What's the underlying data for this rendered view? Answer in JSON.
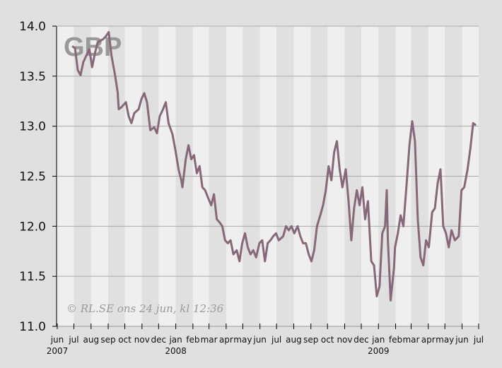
{
  "chart_data": {
    "type": "line",
    "title": "GBP",
    "watermark": "© RL.SE ons 24 jun, kl 12:36",
    "xlabel": "",
    "ylabel": "",
    "xlim": [
      "2007-06-01",
      "2009-07-01"
    ],
    "ylim": [
      11.0,
      14.0
    ],
    "yticks": [
      "14.0",
      "13.5",
      "13.0",
      "12.5",
      "12.0",
      "11.5",
      "11.0"
    ],
    "xtick_labels": [
      "jun",
      "jul",
      "aug",
      "sep",
      "oct",
      "nov",
      "dec",
      "jan",
      "feb",
      "mar",
      "apr",
      "may",
      "jun",
      "jul",
      "aug",
      "sep",
      "oct",
      "nov",
      "dec",
      "jan",
      "feb",
      "mar",
      "apr",
      "may",
      "jun",
      "jul"
    ],
    "year_labels": [
      {
        "label": "2007",
        "month_index": 0
      },
      {
        "label": "2008",
        "month_index": 7
      },
      {
        "label": "2009",
        "month_index": 19
      }
    ],
    "grid": true,
    "alternating_month_bands": true,
    "colors": {
      "line": "#866878",
      "band_light": "#efefef",
      "band_dark": "#e0e0e0",
      "grid": "#aaaaaa"
    },
    "series": [
      {
        "points": [
          [
            "2007-06-28",
            13.8
          ],
          [
            "2007-07-03",
            13.78
          ],
          [
            "2007-07-08",
            13.56
          ],
          [
            "2007-07-13",
            13.51
          ],
          [
            "2007-07-18",
            13.64
          ],
          [
            "2007-07-23",
            13.7
          ],
          [
            "2007-07-29",
            13.77
          ],
          [
            "2007-08-03",
            13.59
          ],
          [
            "2007-08-08",
            13.73
          ],
          [
            "2007-08-13",
            13.84
          ],
          [
            "2007-08-23",
            13.87
          ],
          [
            "2007-08-28",
            13.9
          ],
          [
            "2007-09-02",
            13.94
          ],
          [
            "2007-09-07",
            13.7
          ],
          [
            "2007-09-13",
            13.52
          ],
          [
            "2007-09-18",
            13.34
          ],
          [
            "2007-09-20",
            13.17
          ],
          [
            "2007-09-25",
            13.19
          ],
          [
            "2007-10-03",
            13.24
          ],
          [
            "2007-10-08",
            13.1
          ],
          [
            "2007-10-13",
            13.03
          ],
          [
            "2007-10-18",
            13.13
          ],
          [
            "2007-10-26",
            13.17
          ],
          [
            "2007-10-31",
            13.27
          ],
          [
            "2007-11-05",
            13.33
          ],
          [
            "2007-11-10",
            13.24
          ],
          [
            "2007-11-16",
            12.96
          ],
          [
            "2007-11-23",
            12.99
          ],
          [
            "2007-11-28",
            12.93
          ],
          [
            "2007-12-03",
            13.1
          ],
          [
            "2007-12-09",
            13.17
          ],
          [
            "2007-12-14",
            13.24
          ],
          [
            "2007-12-19",
            13.03
          ],
          [
            "2007-12-26",
            12.92
          ],
          [
            "2008-01-01",
            12.74
          ],
          [
            "2008-01-06",
            12.57
          ],
          [
            "2008-01-11",
            12.46
          ],
          [
            "2008-01-13",
            12.39
          ],
          [
            "2008-01-19",
            12.67
          ],
          [
            "2008-01-24",
            12.81
          ],
          [
            "2008-01-29",
            12.67
          ],
          [
            "2008-02-03",
            12.71
          ],
          [
            "2008-02-08",
            12.53
          ],
          [
            "2008-02-13",
            12.6
          ],
          [
            "2008-02-18",
            12.39
          ],
          [
            "2008-02-23",
            12.36
          ],
          [
            "2008-02-28",
            12.29
          ],
          [
            "2008-03-05",
            12.21
          ],
          [
            "2008-03-10",
            12.32
          ],
          [
            "2008-03-15",
            12.07
          ],
          [
            "2008-03-20",
            12.04
          ],
          [
            "2008-03-25",
            12.0
          ],
          [
            "2008-03-30",
            11.86
          ],
          [
            "2008-04-04",
            11.83
          ],
          [
            "2008-04-09",
            11.86
          ],
          [
            "2008-04-14",
            11.72
          ],
          [
            "2008-04-20",
            11.76
          ],
          [
            "2008-04-25",
            11.65
          ],
          [
            "2008-04-30",
            11.83
          ],
          [
            "2008-05-05",
            11.93
          ],
          [
            "2008-05-10",
            11.79
          ],
          [
            "2008-05-15",
            11.72
          ],
          [
            "2008-05-20",
            11.76
          ],
          [
            "2008-05-25",
            11.69
          ],
          [
            "2008-05-31",
            11.83
          ],
          [
            "2008-06-05",
            11.86
          ],
          [
            "2008-06-10",
            11.65
          ],
          [
            "2008-06-15",
            11.83
          ],
          [
            "2008-06-20",
            11.86
          ],
          [
            "2008-06-25",
            11.9
          ],
          [
            "2008-06-30",
            11.93
          ],
          [
            "2008-07-05",
            11.86
          ],
          [
            "2008-07-13",
            11.9
          ],
          [
            "2008-07-18",
            12.0
          ],
          [
            "2008-07-23",
            11.96
          ],
          [
            "2008-07-28",
            12.0
          ],
          [
            "2008-08-02",
            11.93
          ],
          [
            "2008-08-08",
            12.0
          ],
          [
            "2008-08-13",
            11.9
          ],
          [
            "2008-08-18",
            11.83
          ],
          [
            "2008-08-23",
            11.83
          ],
          [
            "2008-08-28",
            11.72
          ],
          [
            "2008-09-02",
            11.65
          ],
          [
            "2008-09-07",
            11.76
          ],
          [
            "2008-09-12",
            12.0
          ],
          [
            "2008-09-18",
            12.11
          ],
          [
            "2008-09-23",
            12.21
          ],
          [
            "2008-09-28",
            12.36
          ],
          [
            "2008-10-03",
            12.6
          ],
          [
            "2008-10-08",
            12.46
          ],
          [
            "2008-10-13",
            12.74
          ],
          [
            "2008-10-18",
            12.85
          ],
          [
            "2008-10-23",
            12.57
          ],
          [
            "2008-10-28",
            12.39
          ],
          [
            "2008-11-03",
            12.57
          ],
          [
            "2008-11-08",
            12.25
          ],
          [
            "2008-11-13",
            11.86
          ],
          [
            "2008-11-18",
            12.18
          ],
          [
            "2008-11-23",
            12.36
          ],
          [
            "2008-11-28",
            12.21
          ],
          [
            "2008-12-03",
            12.39
          ],
          [
            "2008-12-08",
            12.07
          ],
          [
            "2008-12-13",
            12.25
          ],
          [
            "2008-12-19",
            11.65
          ],
          [
            "2008-12-24",
            11.61
          ],
          [
            "2008-12-29",
            11.3
          ],
          [
            "2009-01-03",
            11.4
          ],
          [
            "2009-01-08",
            11.93
          ],
          [
            "2009-01-13",
            12.0
          ],
          [
            "2009-01-16",
            12.36
          ],
          [
            "2009-01-18",
            11.86
          ],
          [
            "2009-01-23",
            11.26
          ],
          [
            "2009-01-29",
            11.58
          ],
          [
            "2009-01-31",
            11.79
          ],
          [
            "2009-02-05",
            11.93
          ],
          [
            "2009-02-10",
            12.11
          ],
          [
            "2009-02-15",
            12.0
          ],
          [
            "2009-02-21",
            12.43
          ],
          [
            "2009-02-26",
            12.81
          ],
          [
            "2009-03-03",
            13.05
          ],
          [
            "2009-03-08",
            12.85
          ],
          [
            "2009-03-13",
            12.07
          ],
          [
            "2009-03-18",
            11.69
          ],
          [
            "2009-03-23",
            11.61
          ],
          [
            "2009-03-28",
            11.86
          ],
          [
            "2009-04-02",
            11.79
          ],
          [
            "2009-04-08",
            12.14
          ],
          [
            "2009-04-13",
            12.18
          ],
          [
            "2009-04-18",
            12.43
          ],
          [
            "2009-04-23",
            12.57
          ],
          [
            "2009-04-28",
            12.0
          ],
          [
            "2009-05-03",
            11.93
          ],
          [
            "2009-05-08",
            11.79
          ],
          [
            "2009-05-13",
            11.96
          ],
          [
            "2009-05-19",
            11.86
          ],
          [
            "2009-05-26",
            11.9
          ],
          [
            "2009-05-31",
            12.36
          ],
          [
            "2009-06-05",
            12.39
          ],
          [
            "2009-06-11",
            12.57
          ],
          [
            "2009-06-16",
            12.78
          ],
          [
            "2009-06-21",
            13.03
          ],
          [
            "2009-06-26",
            13.01
          ]
        ]
      }
    ]
  }
}
